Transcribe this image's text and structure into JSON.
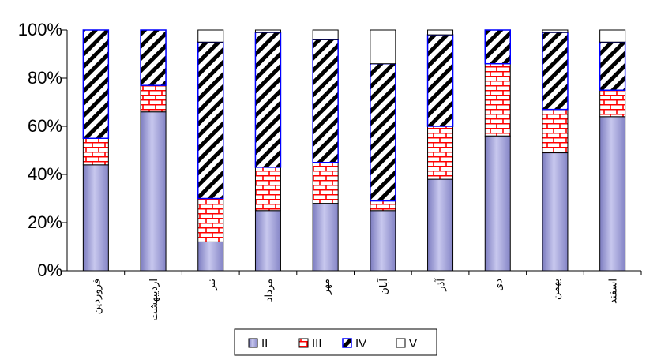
{
  "chart_data": {
    "type": "bar",
    "stacked": true,
    "normalized": true,
    "categories": [
      "فروردین",
      "اردیبهشت",
      "تیر",
      "مرداد",
      "مهر",
      "آبان",
      "آذر",
      "دی",
      "بهمن",
      "اسفند"
    ],
    "series": [
      {
        "name": "II",
        "values": [
          44,
          66,
          12,
          25,
          28,
          25,
          38,
          56,
          49,
          64
        ],
        "color": "#9a9ad2",
        "pattern": "solid"
      },
      {
        "name": "III",
        "values": [
          11,
          11,
          18,
          18,
          17,
          4,
          22,
          30,
          18,
          11
        ],
        "color": "#ff0000",
        "pattern": "brick"
      },
      {
        "name": "IV",
        "values": [
          45,
          23,
          65,
          56,
          51,
          57,
          38,
          14,
          32,
          20
        ],
        "color": "#000000",
        "pattern": "diagonal",
        "border": "#0000ff"
      },
      {
        "name": "V",
        "values": [
          0,
          0,
          5,
          1,
          4,
          14,
          2,
          0,
          1,
          5
        ],
        "color": "#ffffff",
        "pattern": "empty"
      }
    ],
    "y_ticks": [
      "0%",
      "20%",
      "40%",
      "60%",
      "80%",
      "100%"
    ],
    "ylim": [
      0,
      100
    ],
    "grid": false,
    "legend_position": "bottom"
  }
}
